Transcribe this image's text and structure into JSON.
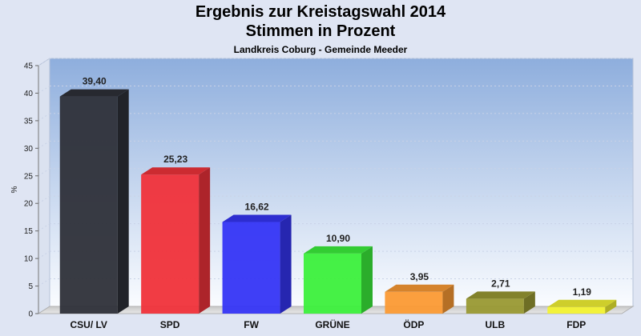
{
  "chart_data": {
    "type": "bar",
    "title": "Ergebnis zur Kreistagswahl 2014",
    "subtitle": "Stimmen in Prozent",
    "caption": "Landkreis Coburg - Gemeinde Meeder",
    "ylabel": "%",
    "xlabel": "",
    "ylim": [
      0,
      45
    ],
    "yticks": [
      0,
      5,
      10,
      15,
      20,
      25,
      30,
      35,
      40,
      45
    ],
    "grid": true,
    "categories": [
      "CSU/ LV",
      "SPD",
      "FW",
      "GRÜNE",
      "ÖDP",
      "ULB",
      "FDP"
    ],
    "values": [
      39.4,
      25.23,
      16.62,
      10.9,
      3.95,
      2.71,
      1.19
    ],
    "value_labels": [
      "39,40",
      "25,23",
      "16,62",
      "10,90",
      "3,95",
      "2,71",
      "1,19"
    ],
    "colors": [
      "#2e3039",
      "#f0323a",
      "#3535f5",
      "#3cf03c",
      "#fb9a34",
      "#999933",
      "#f2f232"
    ]
  }
}
